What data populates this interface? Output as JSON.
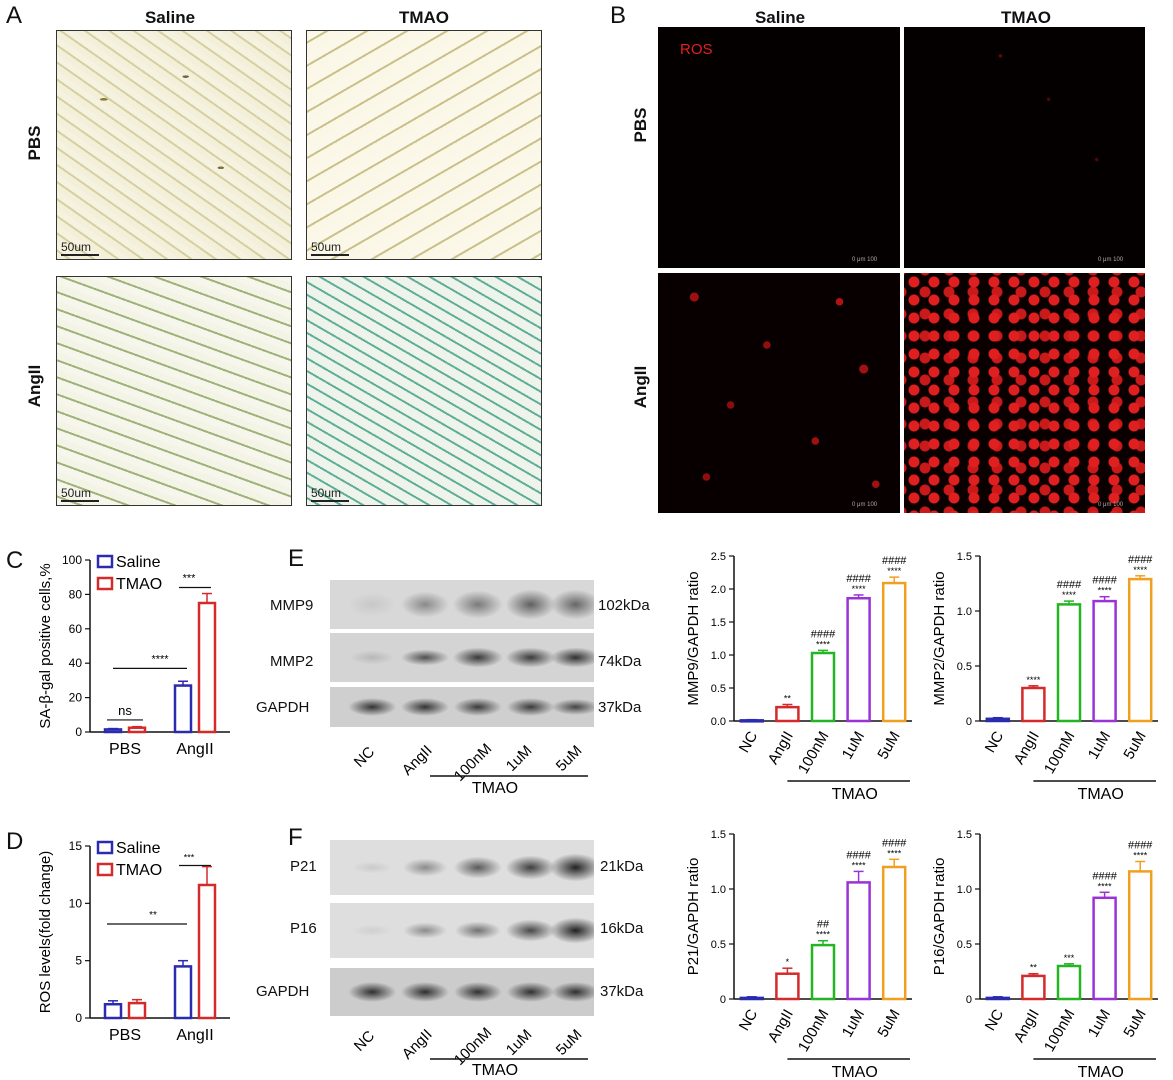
{
  "panels": {
    "A": {
      "letter": "A",
      "columns": [
        "Saline",
        "TMAO"
      ],
      "rows": [
        "PBS",
        "AngII"
      ],
      "scale_bar": "50um"
    },
    "B": {
      "letter": "B",
      "columns": [
        "Saline",
        "TMAO"
      ],
      "rows": [
        "PBS",
        "AngII"
      ],
      "stain": "ROS",
      "scale_text": "0     μm     100"
    },
    "C": {
      "letter": "C"
    },
    "D": {
      "letter": "D"
    },
    "E": {
      "letter": "E",
      "bands": [
        {
          "label": "MMP9",
          "kda": "102kDa"
        },
        {
          "label": "MMP2",
          "kda": "74kDa"
        },
        {
          "label": "GAPDH",
          "kda": "37kDa"
        }
      ],
      "lanes": [
        "NC",
        "AngII",
        "100nM",
        "1uM",
        "5uM"
      ],
      "group": "TMAO"
    },
    "F": {
      "letter": "F",
      "bands": [
        {
          "label": "P21",
          "kda": "21kDa"
        },
        {
          "label": "P16",
          "kda": "16kDa"
        },
        {
          "label": "GAPDH",
          "kda": "37kDa"
        }
      ],
      "lanes": [
        "NC",
        "AngII",
        "100nM",
        "1uM",
        "5uM"
      ],
      "group": "TMAO"
    }
  },
  "colors": {
    "blue": "#2b2bb0",
    "red": "#d42a2a",
    "green": "#23b523",
    "purple": "#9a33d6",
    "orange": "#f0a020"
  },
  "chart_data": [
    {
      "id": "C",
      "type": "bar",
      "categories": [
        "PBS",
        "AngII"
      ],
      "series": [
        {
          "name": "Saline",
          "color": "#2b2bb0",
          "values": [
            1.5,
            27
          ],
          "errors": [
            0.5,
            2.5
          ]
        },
        {
          "name": "TMAO",
          "color": "#d42a2a",
          "values": [
            2.5,
            75
          ],
          "errors": [
            0.6,
            5.5
          ]
        }
      ],
      "ylabel": "SA-β-gal positive cells,%",
      "ylim": [
        0,
        100
      ],
      "yticks": [
        "0",
        "20",
        "40",
        "60",
        "80",
        "100"
      ],
      "legend": "top-left",
      "annotations": [
        {
          "text": "ns",
          "between": [
            "PBS"
          ]
        },
        {
          "text": "****",
          "between": [
            "PBS",
            "AngII"
          ]
        },
        {
          "text": "***",
          "between": [
            "AngII"
          ]
        }
      ]
    },
    {
      "id": "D",
      "type": "bar",
      "categories": [
        "PBS",
        "AngII"
      ],
      "series": [
        {
          "name": "Saline",
          "color": "#2b2bb0",
          "values": [
            1.2,
            4.5
          ],
          "errors": [
            0.3,
            0.5
          ]
        },
        {
          "name": "TMAO",
          "color": "#d42a2a",
          "values": [
            1.3,
            11.6
          ],
          "errors": [
            0.3,
            1.6
          ]
        }
      ],
      "ylabel": "ROS levels(fold change)",
      "ylim": [
        0,
        15
      ],
      "yticks": [
        "0",
        "5",
        "10",
        "15"
      ],
      "legend": "top-left",
      "annotations": [
        {
          "text": "**",
          "between": [
            "PBS",
            "AngII"
          ]
        },
        {
          "text": "***",
          "between": [
            "AngII"
          ]
        }
      ]
    },
    {
      "id": "E-MMP9",
      "type": "bar",
      "categories": [
        "NC",
        "AngII",
        "100nM",
        "1uM",
        "5uM"
      ],
      "values": [
        0.01,
        0.21,
        1.03,
        1.86,
        2.09
      ],
      "errors": [
        0.01,
        0.04,
        0.04,
        0.05,
        0.09
      ],
      "colors": [
        "#2b2bb0",
        "#d42a2a",
        "#23b523",
        "#9a33d6",
        "#f0a020"
      ],
      "stars": [
        "",
        "**",
        "****",
        "****",
        "****"
      ],
      "hashes": [
        "",
        "",
        "####",
        "####",
        "####"
      ],
      "ylabel": "MMP9/GAPDH ratio",
      "ylim": [
        0,
        2.5
      ],
      "yticks": [
        "0.0",
        "0.5",
        "1.0",
        "1.5",
        "2.0",
        "2.5"
      ],
      "group_label": "TMAO"
    },
    {
      "id": "E-MMP2",
      "type": "bar",
      "categories": [
        "NC",
        "AngII",
        "100nM",
        "1uM",
        "5uM"
      ],
      "values": [
        0.02,
        0.3,
        1.06,
        1.09,
        1.29
      ],
      "errors": [
        0.01,
        0.02,
        0.03,
        0.04,
        0.03
      ],
      "colors": [
        "#2b2bb0",
        "#d42a2a",
        "#23b523",
        "#9a33d6",
        "#f0a020"
      ],
      "stars": [
        "",
        "****",
        "****",
        "****",
        "****"
      ],
      "hashes": [
        "",
        "",
        "####",
        "####",
        "####"
      ],
      "ylabel": "MMP2/GAPDH ratio",
      "ylim": [
        0,
        1.5
      ],
      "yticks": [
        "0",
        "0.5",
        "1.0",
        "1.5"
      ],
      "group_label": "TMAO"
    },
    {
      "id": "F-P21",
      "type": "bar",
      "categories": [
        "NC",
        "AngII",
        "100nM",
        "1uM",
        "5uM"
      ],
      "values": [
        0.01,
        0.23,
        0.49,
        1.06,
        1.2
      ],
      "errors": [
        0.01,
        0.05,
        0.04,
        0.1,
        0.07
      ],
      "colors": [
        "#2b2bb0",
        "#d42a2a",
        "#23b523",
        "#9a33d6",
        "#f0a020"
      ],
      "stars": [
        "",
        "*",
        "****",
        "****",
        "****"
      ],
      "hashes": [
        "",
        "",
        "##",
        "####",
        "####"
      ],
      "ylabel": "P21/GAPDH ratio",
      "ylim": [
        0,
        1.5
      ],
      "yticks": [
        "0",
        "0.5",
        "1.0",
        "1.5"
      ],
      "group_label": "TMAO"
    },
    {
      "id": "F-P16",
      "type": "bar",
      "categories": [
        "NC",
        "AngII",
        "100nM",
        "1uM",
        "5uM"
      ],
      "values": [
        0.01,
        0.21,
        0.3,
        0.92,
        1.16
      ],
      "errors": [
        0.01,
        0.02,
        0.02,
        0.05,
        0.09
      ],
      "colors": [
        "#2b2bb0",
        "#d42a2a",
        "#23b523",
        "#9a33d6",
        "#f0a020"
      ],
      "stars": [
        "",
        "**",
        "***",
        "****",
        "****"
      ],
      "hashes": [
        "",
        "",
        "",
        "####",
        "####"
      ],
      "ylabel": "P16/GAPDH ratio",
      "ylim": [
        0,
        1.5
      ],
      "yticks": [
        "0",
        "0.5",
        "1.0",
        "1.5"
      ],
      "group_label": "TMAO"
    }
  ]
}
